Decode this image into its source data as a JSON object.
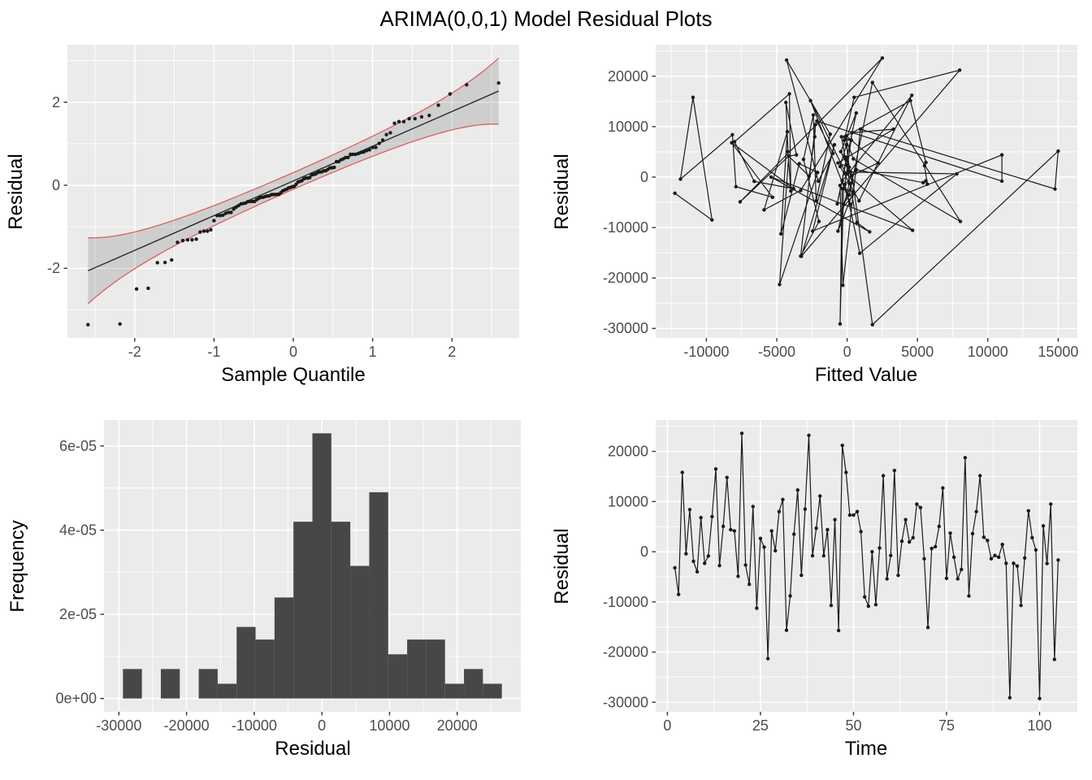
{
  "title": "ARIMA(0,0,1) Model Residual Plots",
  "colors": {
    "panel_bg": "#EBEBEB",
    "grid": "#FFFFFF",
    "point": "#1a1a1a",
    "line": "#1a1a1a",
    "qq_line": "#2b2b2b",
    "band_edge": "#DD5555",
    "band_fill": "rgba(0,0,0,0.12)",
    "bar_fill": "#474747",
    "tick_mark": "#333333",
    "tick_text": "#4d4d4d"
  },
  "panels": {
    "qq": {
      "xlabel": "Sample Quantile",
      "ylabel": "Residual",
      "x_ticks": [
        -2,
        -1,
        0,
        1,
        2
      ],
      "y_ticks": [
        -2,
        0,
        2
      ],
      "conf_z": 1.96,
      "sd_adjust": 0.93
    },
    "fitted": {
      "xlabel": "Fitted Value",
      "ylabel": "Residual",
      "x_ticks": [
        -10000,
        -5000,
        0,
        5000,
        10000,
        15000
      ],
      "y_ticks": [
        -30000,
        -20000,
        -10000,
        0,
        10000,
        20000
      ],
      "fitted": [
        -12240,
        -9600,
        -10950,
        -11840,
        -8150,
        -7900,
        -5300,
        -8200,
        -3800,
        -6600,
        -8000,
        -4100,
        -4000,
        -4200,
        -4350,
        -3600,
        -4150,
        -7600,
        2500,
        -3300,
        -5900,
        -4250,
        -4700,
        -3400,
        -2100,
        -4800,
        -4150,
        -2700,
        -2300,
        -2250,
        -3300,
        -2000,
        -3100,
        -2400,
        -2200,
        -1200,
        -4300,
        -2050,
        -1000,
        -2150,
        11000,
        11000,
        -2450,
        -900,
        -3250,
        8000,
        500,
        -200,
        300,
        -400,
        -150,
        700,
        1600,
        -5400,
        4650,
        -100,
        -2600,
        250,
        -350,
        4600,
        850,
        -500,
        -50,
        150,
        -650,
        3300,
        350,
        -150,
        900,
        7800,
        250,
        -450,
        650,
        -700,
        -50,
        350,
        -250,
        150,
        1800,
        8050,
        450,
        -150,
        4500,
        5600,
        5500,
        5700,
        5600,
        5400,
        650,
        -350,
        -500,
        -250,
        450,
        -650,
        150,
        -50,
        2200,
        350,
        1800,
        15000,
        14770,
        950,
        -300,
        -500
      ]
    },
    "hist": {
      "xlabel": "Residual",
      "ylabel": "Frequency",
      "x_ticks": [
        -30000,
        -20000,
        -10000,
        0,
        10000,
        20000
      ],
      "y_tick_values": [
        0,
        2e-05,
        4e-05,
        6e-05
      ],
      "y_tick_labels": [
        "0e+00",
        "2e-05",
        "4e-05",
        "6e-05"
      ],
      "bin_start": -29400,
      "bin_width": 2800,
      "densities": [
        7e-06,
        0,
        7e-06,
        0,
        7e-06,
        3.5e-06,
        1.7e-05,
        1.4e-05,
        2.4e-05,
        4.2e-05,
        6.3e-05,
        4.2e-05,
        3.15e-05,
        4.9e-05,
        1.05e-05,
        1.4e-05,
        1.4e-05,
        3.5e-06,
        7e-06,
        3.5e-06
      ]
    },
    "time": {
      "xlabel": "Time",
      "ylabel": "Residual",
      "x_ticks": [
        0,
        25,
        50,
        75,
        100
      ],
      "y_ticks": [
        -30000,
        -20000,
        -10000,
        0,
        10000,
        20000
      ],
      "time_start": 2,
      "residuals": [
        -3200,
        -8500,
        15800,
        -400,
        8400,
        -1900,
        -4000,
        6800,
        -2300,
        -850,
        7000,
        16500,
        -2750,
        5050,
        14800,
        4400,
        4150,
        -4900,
        23600,
        -2650,
        -6500,
        9000,
        -11250,
        2650,
        920,
        -21300,
        4150,
        200,
        8000,
        10400,
        -15650,
        -8800,
        3500,
        12300,
        -4700,
        8500,
        23200,
        -800,
        4700,
        11100,
        -800,
        4400,
        -10700,
        6400,
        -15700,
        21200,
        15800,
        7300,
        7300,
        8000,
        4000,
        -9000,
        -10850,
        0,
        -10550,
        750,
        15150,
        -5400,
        -750,
        16200,
        -4700,
        2100,
        6400,
        1950,
        2800,
        9500,
        8800,
        -1400,
        -15100,
        650,
        1000,
        5050,
        12700,
        -5300,
        3700,
        -1100,
        -5400,
        -3550,
        18750,
        -8800,
        3600,
        8000,
        15150,
        2900,
        2250,
        -1400,
        -750,
        -1100,
        1450,
        -2300,
        -29100,
        -2300,
        -2850,
        -10700,
        -1250,
        8150,
        2800,
        350,
        -29250,
        5150,
        -2350,
        9500,
        -21450,
        -1650
      ]
    }
  }
}
